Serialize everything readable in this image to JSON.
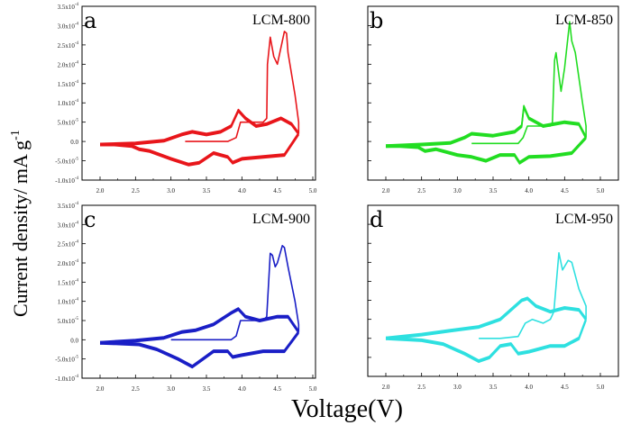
{
  "chart_data": {
    "type": "line",
    "ylabel": "Current density/ mA g",
    "ylabel_superscript": "-1",
    "xlabel": "Voltage(V)",
    "x_ticks": [
      "2.0",
      "2.5",
      "3.0",
      "3.5",
      "4.0",
      "4.5",
      "5.0"
    ],
    "x_tick_values": [
      2.0,
      2.5,
      3.0,
      3.5,
      4.0,
      4.5,
      5.0
    ],
    "y_ticks": [
      {
        "mant": "3.5x10",
        "exp": "-4",
        "value": 0.00035
      },
      {
        "mant": "3.0x10",
        "exp": "-4",
        "value": 0.0003
      },
      {
        "mant": "2.5x10",
        "exp": "-4",
        "value": 0.00025
      },
      {
        "mant": "2.0x10",
        "exp": "-4",
        "value": 0.0002
      },
      {
        "mant": "1.5x10",
        "exp": "-4",
        "value": 0.00015
      },
      {
        "mant": "1.0x10",
        "exp": "-4",
        "value": 0.0001
      },
      {
        "mant": "5.0x10",
        "exp": "-5",
        "value": 5e-05
      },
      {
        "mant": "0.0",
        "exp": "",
        "value": 0
      },
      {
        "mant": "-5.0x10",
        "exp": "-5",
        "value": -5e-05
      },
      {
        "mant": "-1.0x10",
        "exp": "-4",
        "value": -0.0001
      }
    ],
    "xlim": [
      1.75,
      5.15
    ],
    "ylim": [
      -0.0001,
      0.00035
    ],
    "panels": [
      {
        "letter": "a",
        "label": "LCM-800",
        "color": "#e8161b",
        "show_y_ticks": true,
        "first_cycle_charge": [
          [
            3.2,
            0.0
          ],
          [
            3.5,
            0.0
          ],
          [
            3.8,
            0.0
          ],
          [
            3.92,
            1e-05
          ],
          [
            3.98,
            5e-05
          ],
          [
            4.1,
            5e-05
          ],
          [
            4.3,
            5e-05
          ],
          [
            4.35,
            6e-05
          ],
          [
            4.36,
            0.0002
          ],
          [
            4.4,
            0.00027
          ],
          [
            4.45,
            0.00022
          ],
          [
            4.5,
            0.0002
          ],
          [
            4.6,
            0.000285
          ],
          [
            4.63,
            0.00028
          ],
          [
            4.65,
            0.00023
          ],
          [
            4.75,
            0.00012
          ],
          [
            4.8,
            5e-05
          ],
          [
            4.8,
            2e-05
          ]
        ],
        "cycles_charge": [
          [
            2.0,
            -8e-06
          ],
          [
            2.5,
            -5e-06
          ],
          [
            2.9,
            2e-06
          ],
          [
            3.15,
            1.8e-05
          ],
          [
            3.3,
            2.5e-05
          ],
          [
            3.5,
            1.8e-05
          ],
          [
            3.7,
            2.5e-05
          ],
          [
            3.85,
            4e-05
          ],
          [
            3.95,
            8e-05
          ],
          [
            4.05,
            6e-05
          ],
          [
            4.2,
            4e-05
          ],
          [
            4.35,
            4.5e-05
          ],
          [
            4.55,
            6e-05
          ],
          [
            4.7,
            4.5e-05
          ],
          [
            4.8,
            2e-05
          ]
        ],
        "discharge": [
          [
            4.8,
            2e-05
          ],
          [
            4.6,
            -3.5e-05
          ],
          [
            4.3,
            -4e-05
          ],
          [
            4.0,
            -4.5e-05
          ],
          [
            3.87,
            -5.5e-05
          ],
          [
            3.8,
            -4e-05
          ],
          [
            3.6,
            -3e-05
          ],
          [
            3.4,
            -5.5e-05
          ],
          [
            3.25,
            -6e-05
          ],
          [
            3.0,
            -4.5e-05
          ],
          [
            2.7,
            -2.5e-05
          ],
          [
            2.55,
            -2e-05
          ],
          [
            2.45,
            -1.2e-05
          ],
          [
            2.2,
            -8e-06
          ],
          [
            2.0,
            -8e-06
          ]
        ]
      },
      {
        "letter": "b",
        "label": "LCM-850",
        "color": "#22dd22",
        "show_y_ticks": false,
        "first_cycle_charge": [
          [
            3.2,
            -5e-06
          ],
          [
            3.5,
            -5e-06
          ],
          [
            3.85,
            -5e-06
          ],
          [
            3.92,
            1e-05
          ],
          [
            3.98,
            4e-05
          ],
          [
            4.1,
            4e-05
          ],
          [
            4.3,
            4e-05
          ],
          [
            4.33,
            5e-05
          ],
          [
            4.36,
            0.00021
          ],
          [
            4.38,
            0.00023
          ],
          [
            4.45,
            0.00013
          ],
          [
            4.5,
            0.00019
          ],
          [
            4.57,
            0.00031
          ],
          [
            4.6,
            0.00026
          ],
          [
            4.65,
            0.00023
          ],
          [
            4.75,
            0.0001
          ],
          [
            4.8,
            4e-05
          ],
          [
            4.8,
            1e-05
          ]
        ],
        "cycles_charge": [
          [
            2.0,
            -1.2e-05
          ],
          [
            2.5,
            -8e-06
          ],
          [
            2.9,
            -4e-06
          ],
          [
            3.1,
            1e-05
          ],
          [
            3.2,
            2e-05
          ],
          [
            3.5,
            1.5e-05
          ],
          [
            3.8,
            2.5e-05
          ],
          [
            3.9,
            4e-05
          ],
          [
            3.93,
            9e-05
          ],
          [
            4.0,
            6e-05
          ],
          [
            4.2,
            4e-05
          ],
          [
            4.5,
            5e-05
          ],
          [
            4.7,
            4.5e-05
          ],
          [
            4.8,
            1e-05
          ]
        ],
        "discharge": [
          [
            4.8,
            1e-05
          ],
          [
            4.6,
            -3e-05
          ],
          [
            4.3,
            -3.8e-05
          ],
          [
            4.0,
            -4e-05
          ],
          [
            3.87,
            -5.5e-05
          ],
          [
            3.8,
            -3.5e-05
          ],
          [
            3.6,
            -3.5e-05
          ],
          [
            3.4,
            -5e-05
          ],
          [
            3.2,
            -4e-05
          ],
          [
            3.0,
            -3.5e-05
          ],
          [
            2.7,
            -2e-05
          ],
          [
            2.55,
            -2.5e-05
          ],
          [
            2.45,
            -1.5e-05
          ],
          [
            2.2,
            -1.2e-05
          ],
          [
            2.0,
            -1.2e-05
          ]
        ]
      },
      {
        "letter": "c",
        "label": "LCM-900",
        "color": "#1a1fc6",
        "show_y_ticks": true,
        "first_cycle_charge": [
          [
            3.0,
            0.0
          ],
          [
            3.4,
            0.0
          ],
          [
            3.85,
            0.0
          ],
          [
            3.92,
            1e-05
          ],
          [
            3.98,
            5e-05
          ],
          [
            4.1,
            5e-05
          ],
          [
            4.3,
            5e-05
          ],
          [
            4.35,
            6e-05
          ],
          [
            4.4,
            0.000225
          ],
          [
            4.43,
            0.00022
          ],
          [
            4.47,
            0.00019
          ],
          [
            4.5,
            0.0002
          ],
          [
            4.57,
            0.000245
          ],
          [
            4.6,
            0.00024
          ],
          [
            4.65,
            0.00019
          ],
          [
            4.75,
            0.0001
          ],
          [
            4.8,
            4e-05
          ],
          [
            4.8,
            2e-05
          ]
        ],
        "cycles_charge": [
          [
            2.0,
            -8e-06
          ],
          [
            2.5,
            -2e-06
          ],
          [
            2.9,
            5e-06
          ],
          [
            3.15,
            2e-05
          ],
          [
            3.35,
            2.5e-05
          ],
          [
            3.6,
            4e-05
          ],
          [
            3.85,
            7e-05
          ],
          [
            3.95,
            8e-05
          ],
          [
            4.05,
            6e-05
          ],
          [
            4.25,
            5e-05
          ],
          [
            4.5,
            6e-05
          ],
          [
            4.65,
            6e-05
          ],
          [
            4.8,
            2e-05
          ]
        ],
        "discharge": [
          [
            4.8,
            2e-05
          ],
          [
            4.6,
            -3e-05
          ],
          [
            4.3,
            -3e-05
          ],
          [
            4.0,
            -4e-05
          ],
          [
            3.87,
            -4.5e-05
          ],
          [
            3.8,
            -3e-05
          ],
          [
            3.6,
            -3e-05
          ],
          [
            3.45,
            -5e-05
          ],
          [
            3.3,
            -7e-05
          ],
          [
            3.1,
            -5e-05
          ],
          [
            2.8,
            -2.5e-05
          ],
          [
            2.55,
            -1.2e-05
          ],
          [
            2.3,
            -1e-05
          ],
          [
            2.0,
            -8e-06
          ]
        ]
      },
      {
        "letter": "d",
        "label": "LCM-950",
        "color": "#2ee0e0",
        "show_y_ticks": false,
        "first_cycle_charge": [
          [
            3.3,
            0.0
          ],
          [
            3.6,
            0.0
          ],
          [
            3.85,
            5e-06
          ],
          [
            3.95,
            4e-05
          ],
          [
            4.05,
            5e-05
          ],
          [
            4.2,
            4e-05
          ],
          [
            4.3,
            5e-05
          ],
          [
            4.35,
            7e-05
          ],
          [
            4.42,
            0.000225
          ],
          [
            4.47,
            0.00018
          ],
          [
            4.55,
            0.000205
          ],
          [
            4.6,
            0.0002
          ],
          [
            4.7,
            0.00013
          ],
          [
            4.8,
            8.5e-05
          ],
          [
            4.8,
            5e-05
          ]
        ],
        "cycles_charge": [
          [
            2.0,
            0.0
          ],
          [
            2.5,
            1e-05
          ],
          [
            2.9,
            2e-05
          ],
          [
            3.3,
            3e-05
          ],
          [
            3.6,
            5e-05
          ],
          [
            3.9,
            0.0001
          ],
          [
            3.98,
            0.000105
          ],
          [
            4.1,
            8.5e-05
          ],
          [
            4.3,
            7e-05
          ],
          [
            4.5,
            8e-05
          ],
          [
            4.7,
            7.5e-05
          ],
          [
            4.8,
            5e-05
          ]
        ],
        "discharge": [
          [
            4.8,
            5e-05
          ],
          [
            4.7,
            0.0
          ],
          [
            4.5,
            -2e-05
          ],
          [
            4.3,
            -2e-05
          ],
          [
            4.0,
            -3.5e-05
          ],
          [
            3.85,
            -4e-05
          ],
          [
            3.75,
            -1.5e-05
          ],
          [
            3.6,
            -2e-05
          ],
          [
            3.45,
            -5e-05
          ],
          [
            3.3,
            -6e-05
          ],
          [
            3.1,
            -4e-05
          ],
          [
            2.8,
            -1.5e-05
          ],
          [
            2.5,
            -5e-06
          ],
          [
            2.0,
            0.0
          ]
        ]
      }
    ]
  }
}
